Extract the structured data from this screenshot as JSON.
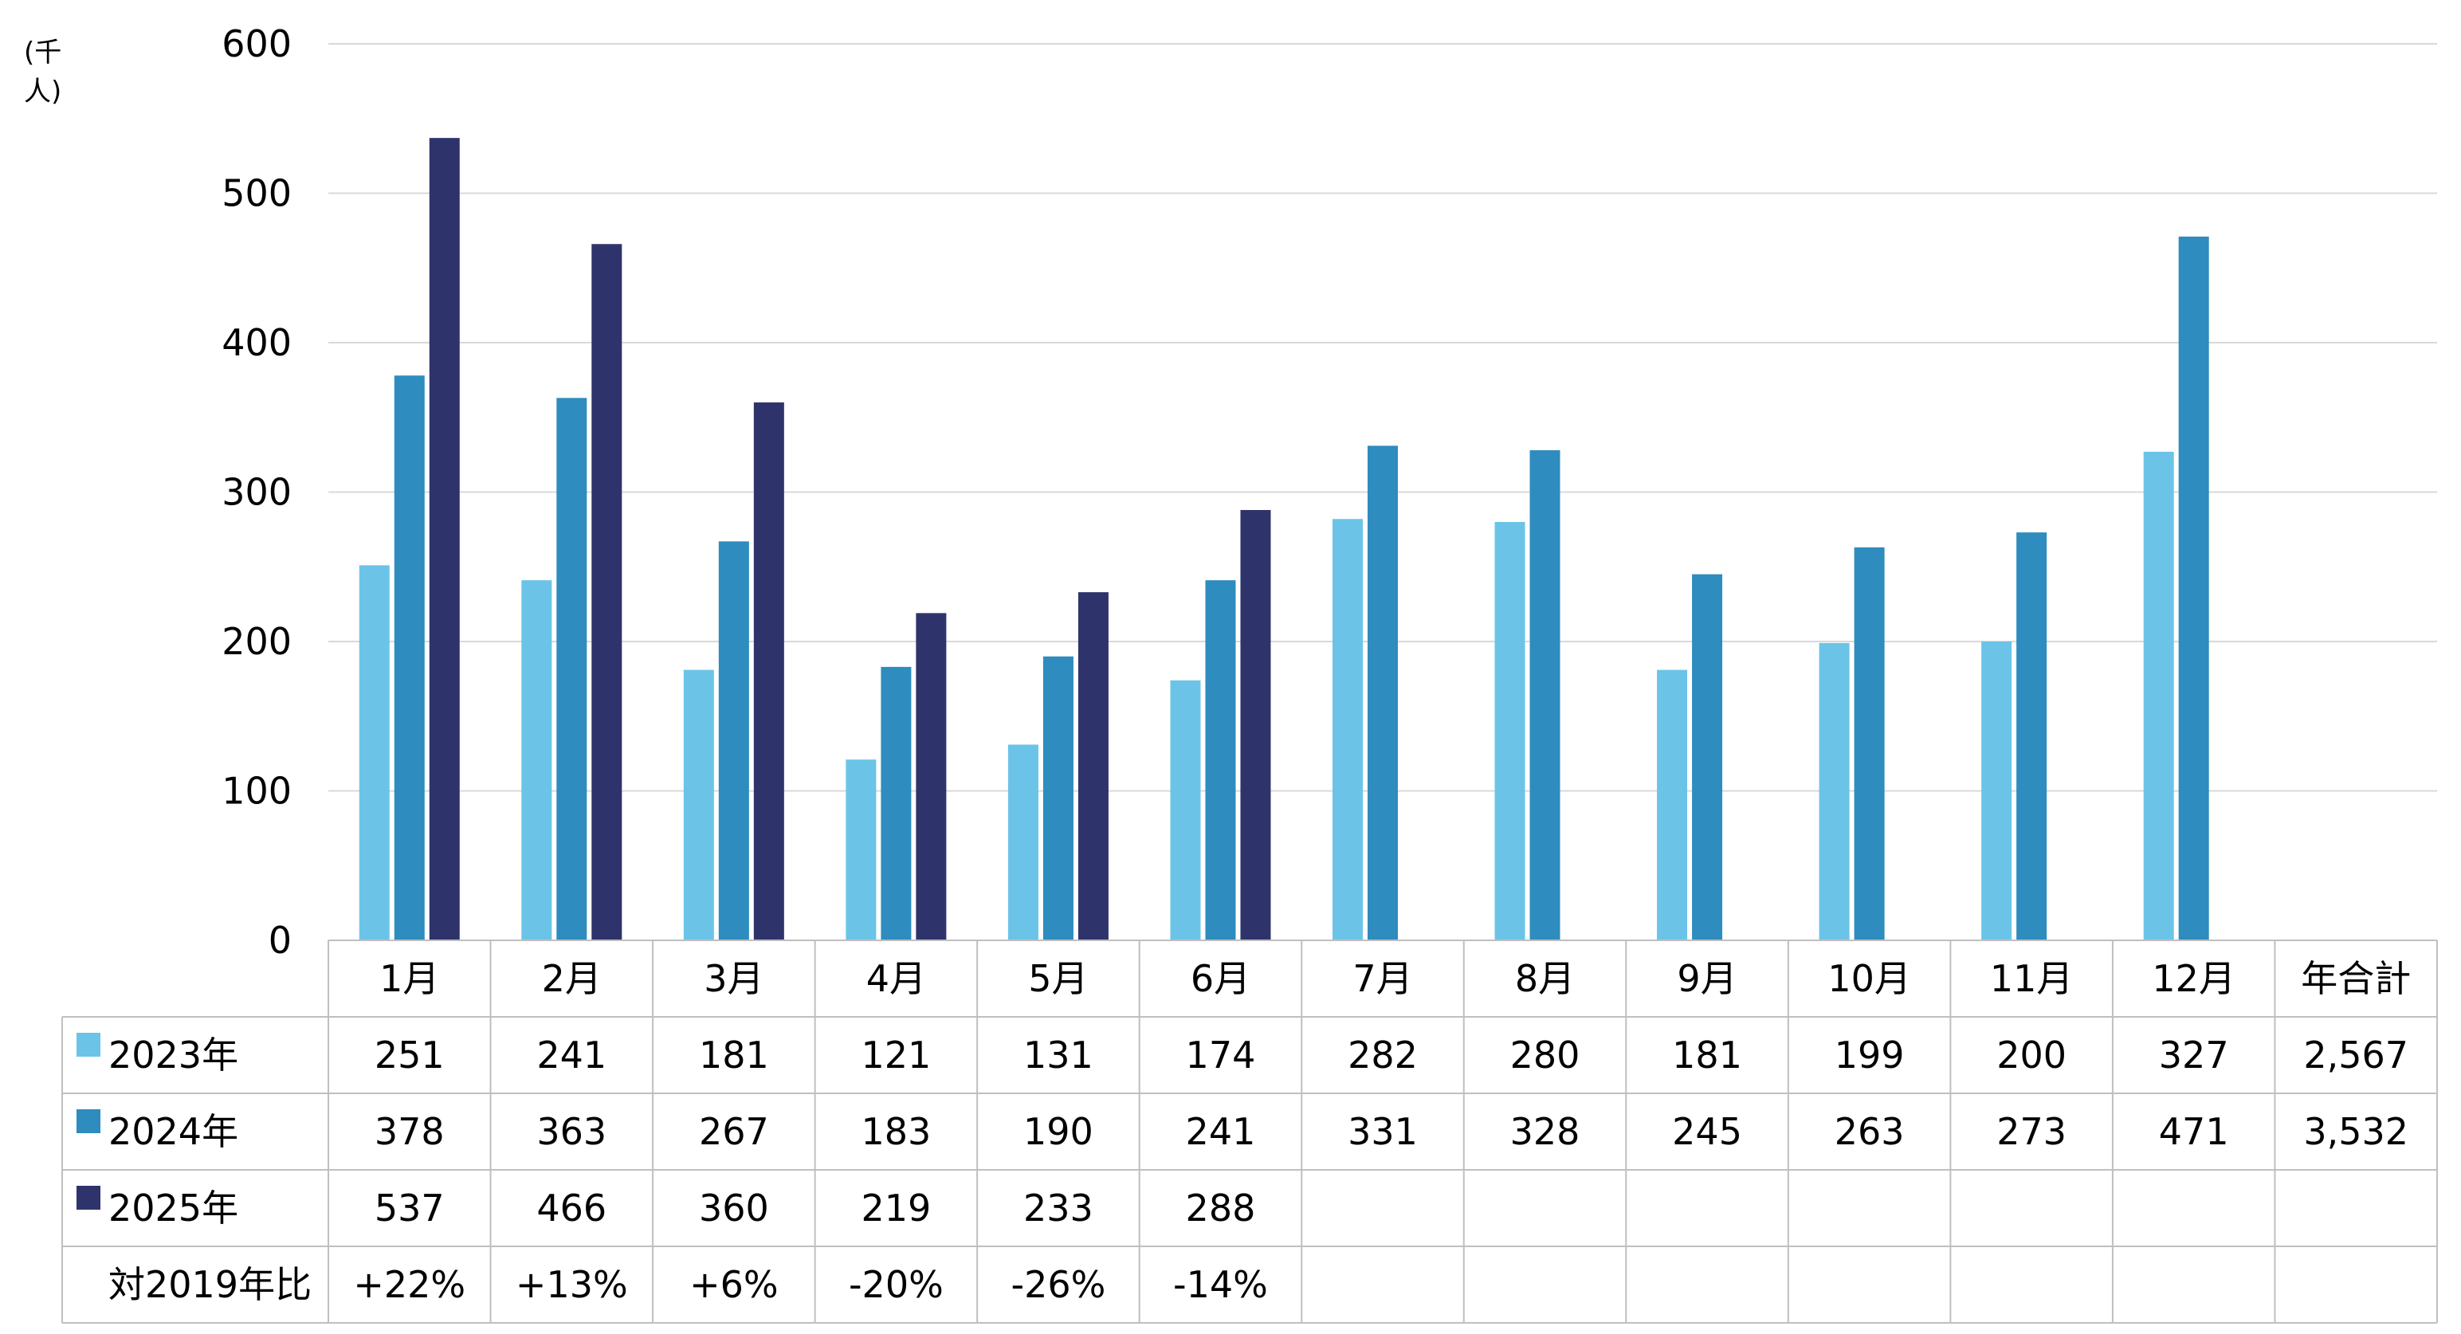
{
  "unit_label": "(千人)",
  "colors": {
    "s2023": "#6bc4e8",
    "s2024": "#2e8cbe",
    "s2025": "#2e346b",
    "grid": "#d9d9d9",
    "axis": "#bfbfbf"
  },
  "chart_data": {
    "type": "bar",
    "categories": [
      "1月",
      "2月",
      "3月",
      "4月",
      "5月",
      "6月",
      "7月",
      "8月",
      "9月",
      "10月",
      "11月",
      "12月"
    ],
    "ylim": [
      0,
      600
    ],
    "yticks": [
      "0",
      "100",
      "200",
      "300",
      "400",
      "500",
      "600"
    ],
    "grid": true,
    "series": [
      {
        "name": "2023年",
        "values": [
          251,
          241,
          181,
          121,
          131,
          174,
          282,
          280,
          181,
          199,
          200,
          327
        ]
      },
      {
        "name": "2024年",
        "values": [
          378,
          363,
          267,
          183,
          190,
          241,
          331,
          328,
          245,
          263,
          273,
          471
        ]
      },
      {
        "name": "2025年",
        "values": [
          537,
          466,
          360,
          219,
          233,
          288,
          null,
          null,
          null,
          null,
          null,
          null
        ]
      }
    ]
  },
  "table": {
    "total_header": "年合計",
    "rows": [
      {
        "label": "2023年",
        "cells": [
          "251",
          "241",
          "181",
          "121",
          "131",
          "174",
          "282",
          "280",
          "181",
          "199",
          "200",
          "327",
          "2,567"
        ]
      },
      {
        "label": "2024年",
        "cells": [
          "378",
          "363",
          "267",
          "183",
          "190",
          "241",
          "331",
          "328",
          "245",
          "263",
          "273",
          "471",
          "3,532"
        ]
      },
      {
        "label": "2025年",
        "cells": [
          "537",
          "466",
          "360",
          "219",
          "233",
          "288",
          "",
          "",
          "",
          "",
          "",
          "",
          ""
        ]
      },
      {
        "label": "対2019年比",
        "cells": [
          "+22%",
          "+13%",
          "+6%",
          "-20%",
          "-26%",
          "-14%",
          "",
          "",
          "",
          "",
          "",
          "",
          ""
        ]
      }
    ]
  }
}
